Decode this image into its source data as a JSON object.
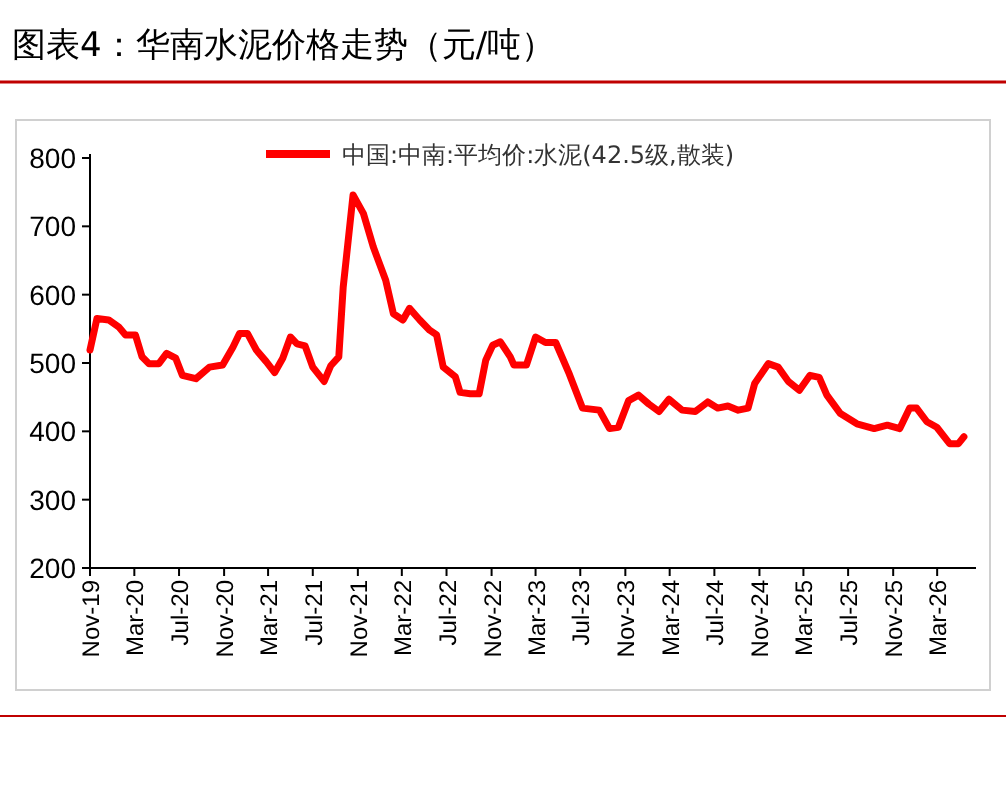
{
  "chart_data": {
    "type": "line",
    "title": "图表4：华南水泥价格走势（元/吨）",
    "series": [
      {
        "name": "中国:中南:平均价:水泥(42.5级,散装)",
        "color": "#ff0000",
        "x": [
          "2019-11-01",
          "2019-11-20",
          "2019-12-22",
          "2020-01-18",
          "2020-02-06",
          "2020-03-04",
          "2020-03-22",
          "2020-04-10",
          "2020-05-07",
          "2020-05-28",
          "2020-06-22",
          "2020-07-10",
          "2020-08-16",
          "2020-09-22",
          "2020-10-28",
          "2020-11-25",
          "2020-12-13",
          "2021-01-04",
          "2021-01-28",
          "2021-02-24",
          "2021-03-19",
          "2021-04-10",
          "2021-05-01",
          "2021-05-19",
          "2021-06-10",
          "2021-07-01",
          "2021-08-01",
          "2021-08-19",
          "2021-09-10",
          "2021-09-22",
          "2021-10-19",
          "2021-11-16",
          "2021-12-13",
          "2022-01-16",
          "2022-02-06",
          "2022-03-04",
          "2022-03-22",
          "2022-04-19",
          "2022-05-16",
          "2022-06-04",
          "2022-06-22",
          "2022-07-25",
          "2022-08-07",
          "2022-09-04",
          "2022-09-28",
          "2022-10-16",
          "2022-11-04",
          "2022-11-25",
          "2022-12-22",
          "2023-01-01",
          "2023-02-04",
          "2023-03-01",
          "2023-03-28",
          "2023-04-25",
          "2023-06-01",
          "2023-07-07",
          "2023-08-22",
          "2023-09-19",
          "2023-10-13",
          "2023-11-10",
          "2023-12-07",
          "2024-01-04",
          "2024-02-01",
          "2024-02-28",
          "2024-04-04",
          "2024-05-10",
          "2024-06-13",
          "2024-07-10",
          "2024-08-07",
          "2024-09-04",
          "2024-10-01",
          "2024-10-19",
          "2024-11-25",
          "2024-12-22",
          "2025-01-19",
          "2025-02-18",
          "2025-03-19",
          "2025-04-13",
          "2025-05-04",
          "2025-06-10",
          "2025-07-25",
          "2025-09-10",
          "2025-10-16",
          "2025-11-19",
          "2025-12-16",
          "2026-01-04",
          "2026-02-01",
          "2026-02-28",
          "2026-04-04",
          "2026-04-28",
          "2026-05-13"
        ],
        "values": [
          519,
          565,
          563,
          553,
          541,
          541,
          509,
          499,
          499,
          514,
          507,
          482,
          477,
          494,
          497,
          523,
          543,
          543,
          519,
          502,
          486,
          507,
          538,
          528,
          525,
          494,
          473,
          496,
          509,
          611,
          746,
          719,
          670,
          621,
          572,
          563,
          580,
          563,
          548,
          541,
          494,
          480,
          457,
          455,
          455,
          504,
          526,
          531,
          509,
          497,
          497,
          538,
          530,
          530,
          484,
          434,
          431,
          404,
          406,
          445,
          453,
          440,
          429,
          447,
          431,
          429,
          443,
          434,
          437,
          431,
          434,
          470,
          499,
          494,
          473,
          460,
          482,
          479,
          453,
          426,
          411,
          404,
          409,
          404,
          434,
          434,
          414,
          406,
          382,
          382,
          392
        ]
      }
    ],
    "xlim": [
      "2019-11-01",
      "2026-06-15"
    ],
    "xticks": [
      {
        "value": "2019-11-01",
        "label": "Nov-19"
      },
      {
        "value": "2020-03-01",
        "label": "Mar-20"
      },
      {
        "value": "2020-07-01",
        "label": "Jul-20"
      },
      {
        "value": "2020-11-01",
        "label": "Nov-20"
      },
      {
        "value": "2021-03-01",
        "label": "Mar-21"
      },
      {
        "value": "2021-07-01",
        "label": "Jul-21"
      },
      {
        "value": "2021-11-01",
        "label": "Nov-21"
      },
      {
        "value": "2022-03-01",
        "label": "Mar-22"
      },
      {
        "value": "2022-07-01",
        "label": "Jul-22"
      },
      {
        "value": "2022-11-01",
        "label": "Nov-22"
      },
      {
        "value": "2023-03-01",
        "label": "Mar-23"
      },
      {
        "value": "2023-07-01",
        "label": "Jul-23"
      },
      {
        "value": "2023-11-01",
        "label": "Nov-23"
      },
      {
        "value": "2024-03-01",
        "label": "Mar-24"
      },
      {
        "value": "2024-07-01",
        "label": "Jul-24"
      },
      {
        "value": "2024-11-01",
        "label": "Nov-24"
      },
      {
        "value": "2025-03-01",
        "label": "Mar-25"
      },
      {
        "value": "2025-07-01",
        "label": "Jul-25"
      },
      {
        "value": "2025-11-01",
        "label": "Nov-25"
      },
      {
        "value": "2026-03-01",
        "label": "Mar-26"
      }
    ],
    "ylim": [
      200,
      800
    ],
    "yticks": [
      200,
      300,
      400,
      500,
      600,
      700,
      800
    ],
    "legend": "top",
    "grid": false,
    "marker": "none",
    "line_style": "solid"
  }
}
